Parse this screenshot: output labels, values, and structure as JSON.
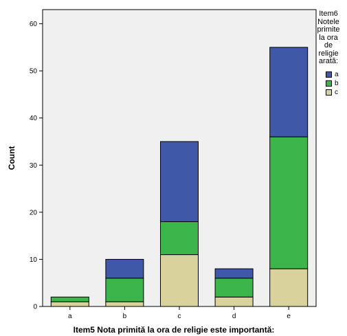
{
  "chart_data": {
    "type": "bar",
    "stacked": true,
    "categories": [
      "a",
      "b",
      "c",
      "d",
      "e"
    ],
    "series": [
      {
        "name": "c",
        "color": "#d9d29c",
        "values": [
          1,
          1,
          11,
          2,
          8
        ]
      },
      {
        "name": "b",
        "color": "#3cb54a",
        "values": [
          1,
          5,
          7,
          4,
          28
        ]
      },
      {
        "name": "a",
        "color": "#3f58a7",
        "values": [
          0,
          4,
          17,
          2,
          19
        ]
      }
    ],
    "xlabel": "Item5 Nota primită la ora de religie este importantă:",
    "ylabel": "Count",
    "ylim": [
      0,
      63
    ],
    "yticks": [
      0,
      10,
      20,
      30,
      40,
      50,
      60
    ],
    "grid": false,
    "plot_background": "#f0f0f0",
    "legend": {
      "title": [
        "Item6",
        "Notele",
        "primite",
        "la ora",
        "de",
        "religie",
        "arată:"
      ],
      "position": "right",
      "order": [
        "a",
        "b",
        "c"
      ]
    }
  }
}
